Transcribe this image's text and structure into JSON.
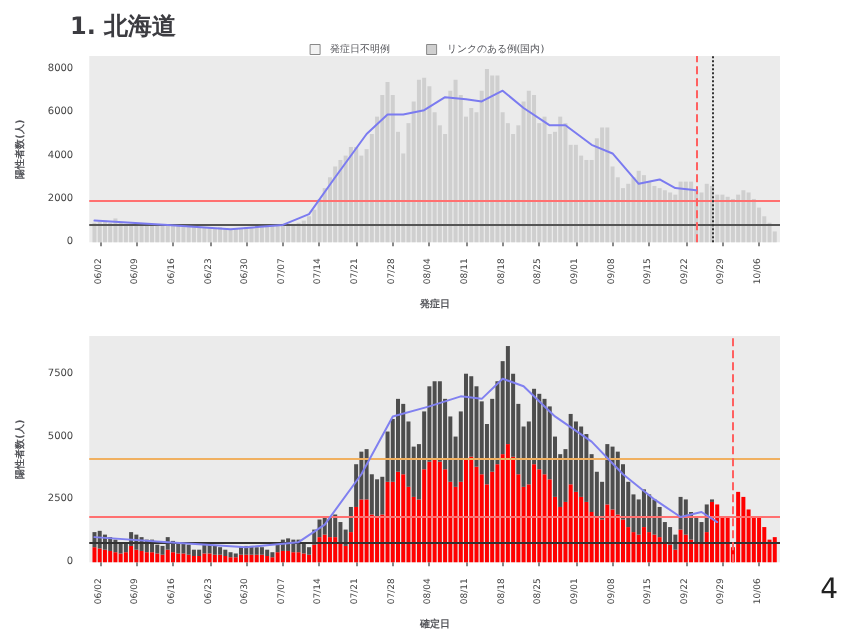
{
  "chart_data": [
    {
      "type": "bar",
      "title": "1. 北海道",
      "xlabel": "発症日",
      "ylabel": "陽性者数(人)",
      "legend": "top",
      "grid": false,
      "marker": "none",
      "line_style": "solid",
      "x": [
        "--06-01",
        "--06-02",
        "--06-03",
        "--06-04",
        "--06-05",
        "--06-06",
        "--06-07",
        "--06-08",
        "--06-09",
        "--06-10",
        "--06-11",
        "--06-12",
        "--06-13",
        "--06-14",
        "--06-15",
        "--06-16",
        "--06-17",
        "--06-18",
        "--06-19",
        "--06-20",
        "--06-21",
        "--06-22",
        "--06-23",
        "--06-24",
        "--06-25",
        "--06-26",
        "--06-27",
        "--06-28",
        "--06-29",
        "--06-30",
        "--07-01",
        "--07-02",
        "--07-03",
        "--07-04",
        "--07-05",
        "--07-06",
        "--07-07",
        "--07-08",
        "--07-09",
        "--07-10",
        "--07-11",
        "--07-12",
        "--07-13",
        "--07-14",
        "--07-15",
        "--07-16",
        "--07-17",
        "--07-18",
        "--07-19",
        "--07-20",
        "--07-21",
        "--07-22",
        "--07-23",
        "--07-24",
        "--07-25",
        "--07-26",
        "--07-27",
        "--07-28",
        "--07-29",
        "--07-30",
        "--07-31",
        "--08-01",
        "--08-02",
        "--08-03",
        "--08-04",
        "--08-05",
        "--08-06",
        "--08-07",
        "--08-08",
        "--08-09",
        "--08-10",
        "--08-11",
        "--08-12",
        "--08-13",
        "--08-14",
        "--08-15",
        "--08-16",
        "--08-17",
        "--08-18",
        "--08-19",
        "--08-20",
        "--08-21",
        "--08-22",
        "--08-23",
        "--08-24",
        "--08-25",
        "--08-26",
        "--08-27",
        "--08-28",
        "--08-29",
        "--08-30",
        "--08-31",
        "--09-01",
        "--09-02",
        "--09-03",
        "--09-04",
        "--09-05",
        "--09-06",
        "--09-07",
        "--09-08",
        "--09-09",
        "--09-10",
        "--09-11",
        "--09-12",
        "--09-13",
        "--09-14",
        "--09-15",
        "--09-16",
        "--09-17",
        "--09-18",
        "--09-19",
        "--09-20",
        "--09-21",
        "--09-22",
        "--09-23",
        "--09-24",
        "--09-25",
        "--09-26",
        "--09-27",
        "--09-28",
        "--09-29",
        "--09-30",
        "--10-01",
        "--10-02",
        "--10-03",
        "--10-04",
        "--10-05",
        "--10-06",
        "--10-07",
        "--10-08",
        "--10-09"
      ],
      "series": [
        {
          "name": "発症日不明例",
          "color": "#f2f2f2",
          "values": [
            null,
            null,
            null,
            null,
            null,
            null,
            null,
            null,
            null,
            null,
            null,
            null,
            null,
            null,
            null,
            null,
            null,
            null,
            null,
            null,
            null,
            null,
            null,
            null,
            null,
            null,
            null,
            null,
            null,
            null,
            null,
            null,
            null,
            null,
            null,
            null,
            null,
            null,
            null,
            null,
            null,
            null,
            null,
            null,
            null,
            null,
            null,
            null,
            null,
            null,
            null,
            null,
            null,
            null,
            null,
            null,
            null,
            null,
            null,
            null,
            null,
            null,
            null,
            null,
            null,
            null,
            null,
            null,
            null,
            null,
            null,
            null,
            null,
            null,
            null,
            null,
            null,
            null,
            null,
            null,
            null,
            null,
            null,
            null,
            null,
            null,
            null,
            null,
            null,
            null,
            null,
            null,
            null,
            null,
            null,
            null,
            null,
            null,
            null,
            null,
            null,
            null,
            null,
            null,
            null,
            null,
            null,
            null,
            null,
            null,
            null,
            null,
            null,
            null,
            null,
            null,
            null,
            null,
            null,
            null,
            null,
            null,
            null,
            null,
            null,
            null,
            null,
            null,
            null,
            null,
            null
          ]
        },
        {
          "name": "リンクのある例(国内)",
          "color": "#cfcfcf",
          "values": [
            900,
            950,
            1000,
            900,
            1100,
            900,
            850,
            850,
            900,
            850,
            800,
            800,
            750,
            800,
            800,
            750,
            750,
            700,
            700,
            750,
            700,
            700,
            650,
            650,
            700,
            650,
            600,
            650,
            650,
            700,
            700,
            750,
            700,
            750,
            800,
            800,
            850,
            800,
            850,
            900,
            1000,
            1200,
            1500,
            2000,
            2500,
            3000,
            3500,
            3800,
            4000,
            4400,
            4400,
            4000,
            4300,
            5000,
            5800,
            6800,
            7400,
            6800,
            5100,
            4100,
            5500,
            6500,
            7500,
            7600,
            7200,
            6000,
            5400,
            5000,
            7000,
            7500,
            6800,
            5800,
            6200,
            6000,
            7000,
            8000,
            7700,
            7700,
            6000,
            5500,
            5000,
            5400,
            6500,
            7000,
            6800,
            5500,
            5800,
            5000,
            5100,
            5800,
            5500,
            4500,
            4500,
            4000,
            3800,
            3800,
            4800,
            5300,
            5300,
            3500,
            3000,
            2500,
            2700,
            3000,
            3300,
            3100,
            2800,
            2600,
            2500,
            2400,
            2300,
            2200,
            2800,
            2800,
            2800,
            2400,
            2300,
            2700,
            2600,
            2200,
            2200,
            2100,
            2000,
            2200,
            2400,
            2300,
            2000,
            1600,
            1200,
            900,
            500
          ]
        },
        {
          "type": "line",
          "color": "#7b7bf0",
          "x": [
            "--06-01",
            "--06-15",
            "--06-27",
            "--07-07",
            "--07-12",
            "--07-17",
            "--07-23",
            "--07-27",
            "--07-30",
            "--08-03",
            "--08-07",
            "--08-11",
            "--08-14",
            "--08-18",
            "--08-22",
            "--08-27",
            "--08-30",
            "--09-04",
            "--09-08",
            "--09-13",
            "--09-17",
            "--09-20",
            "--09-24"
          ],
          "values": [
            1000,
            800,
            600,
            800,
            1300,
            3000,
            5000,
            5900,
            5900,
            6100,
            6700,
            6600,
            6500,
            7000,
            6200,
            5400,
            5400,
            4500,
            4100,
            2700,
            2900,
            2500,
            2400
          ]
        }
      ],
      "ylim": [
        0,
        8600
      ],
      "yticks": [
        0,
        2000,
        4000,
        6000,
        8000
      ],
      "xlim": [
        "--05-31",
        "--10-10"
      ],
      "xticks": [
        {
          "value": "--06-02",
          "label": "06/02"
        },
        {
          "value": "--06-09",
          "label": "06/09"
        },
        {
          "value": "--06-16",
          "label": "06/16"
        },
        {
          "value": "--06-23",
          "label": "06/23"
        },
        {
          "value": "--06-30",
          "label": "06/30"
        },
        {
          "value": "--07-07",
          "label": "07/07"
        },
        {
          "value": "--07-14",
          "label": "07/14"
        },
        {
          "value": "--07-21",
          "label": "07/21"
        },
        {
          "value": "--07-28",
          "label": "07/28"
        },
        {
          "value": "--08-04",
          "label": "08/04"
        },
        {
          "value": "--08-11",
          "label": "08/11"
        },
        {
          "value": "--08-18",
          "label": "08/18"
        },
        {
          "value": "--08-25",
          "label": "08/25"
        },
        {
          "value": "--09-01",
          "label": "09/01"
        },
        {
          "value": "--09-08",
          "label": "09/08"
        },
        {
          "value": "--09-15",
          "label": "09/15"
        },
        {
          "value": "--09-22",
          "label": "09/22"
        },
        {
          "value": "--09-29",
          "label": "09/29"
        },
        {
          "value": "--10-06",
          "label": "10/06"
        }
      ],
      "ref_lines": [
        {
          "axis": "y",
          "value": 1900,
          "color": "#ff7070",
          "line_style": "solid"
        },
        {
          "axis": "y",
          "value": 800,
          "color": "#555555",
          "line_style": "solid"
        },
        {
          "axis": "x",
          "value": "--09-24",
          "color": "#ff6060",
          "line_style": "dashed"
        },
        {
          "axis": "x",
          "value": "--09-27",
          "color": "#333333",
          "line_style": "dotted"
        }
      ]
    },
    {
      "type": "bar",
      "stacked": true,
      "xlabel": "確定日",
      "ylabel": "陽性者数(人)",
      "grid": false,
      "marker": "none",
      "line_style": "solid",
      "annotations": [
        "4"
      ],
      "x": [
        "--06-01",
        "--06-02",
        "--06-03",
        "--06-04",
        "--06-05",
        "--06-06",
        "--06-07",
        "--06-08",
        "--06-09",
        "--06-10",
        "--06-11",
        "--06-12",
        "--06-13",
        "--06-14",
        "--06-15",
        "--06-16",
        "--06-17",
        "--06-18",
        "--06-19",
        "--06-20",
        "--06-21",
        "--06-22",
        "--06-23",
        "--06-24",
        "--06-25",
        "--06-26",
        "--06-27",
        "--06-28",
        "--06-29",
        "--06-30",
        "--07-01",
        "--07-02",
        "--07-03",
        "--07-04",
        "--07-05",
        "--07-06",
        "--07-07",
        "--07-08",
        "--07-09",
        "--07-10",
        "--07-11",
        "--07-12",
        "--07-13",
        "--07-14",
        "--07-15",
        "--07-16",
        "--07-17",
        "--07-18",
        "--07-19",
        "--07-20",
        "--07-21",
        "--07-22",
        "--07-23",
        "--07-24",
        "--07-25",
        "--07-26",
        "--07-27",
        "--07-28",
        "--07-29",
        "--07-30",
        "--07-31",
        "--08-01",
        "--08-02",
        "--08-03",
        "--08-04",
        "--08-05",
        "--08-06",
        "--08-07",
        "--08-08",
        "--08-09",
        "--08-10",
        "--08-11",
        "--08-12",
        "--08-13",
        "--08-14",
        "--08-15",
        "--08-16",
        "--08-17",
        "--08-18",
        "--08-19",
        "--08-20",
        "--08-21",
        "--08-22",
        "--08-23",
        "--08-24",
        "--08-25",
        "--08-26",
        "--08-27",
        "--08-28",
        "--08-29",
        "--08-30",
        "--08-31",
        "--09-01",
        "--09-02",
        "--09-03",
        "--09-04",
        "--09-05",
        "--09-06",
        "--09-07",
        "--09-08",
        "--09-09",
        "--09-10",
        "--09-11",
        "--09-12",
        "--09-13",
        "--09-14",
        "--09-15",
        "--09-16",
        "--09-17",
        "--09-18",
        "--09-19",
        "--09-20",
        "--09-21",
        "--09-22",
        "--09-23",
        "--09-24",
        "--09-25",
        "--09-26",
        "--09-27",
        "--09-28",
        "--09-29",
        "--09-30",
        "--10-01",
        "--10-02",
        "--10-03",
        "--10-04",
        "--10-05",
        "--10-06",
        "--10-07",
        "--10-08",
        "--10-09"
      ],
      "series": [
        {
          "color": "#ff0000",
          "values": [
            600,
            550,
            500,
            450,
            400,
            350,
            400,
            650,
            500,
            450,
            400,
            400,
            350,
            300,
            500,
            400,
            350,
            350,
            300,
            250,
            250,
            350,
            350,
            300,
            300,
            250,
            200,
            200,
            300,
            300,
            300,
            300,
            300,
            250,
            200,
            400,
            450,
            450,
            400,
            400,
            350,
            300,
            700,
            1000,
            1100,
            1000,
            1000,
            800,
            650,
            1200,
            2200,
            2500,
            2500,
            1900,
            1800,
            1900,
            3200,
            3200,
            3600,
            3500,
            3000,
            2600,
            2500,
            3700,
            4000,
            4100,
            4000,
            3700,
            3200,
            3000,
            3200,
            4100,
            4200,
            3800,
            3500,
            3100,
            3600,
            3900,
            4300,
            4700,
            4200,
            3500,
            3000,
            3100,
            3900,
            3700,
            3500,
            3300,
            2600,
            2200,
            2400,
            3100,
            2800,
            2600,
            2400,
            2000,
            1800,
            1700,
            2300,
            2100,
            1900,
            1700,
            1400,
            1200,
            1100,
            1400,
            1200,
            1100,
            1000,
            800,
            700,
            500,
            1300,
            1100,
            900,
            800,
            800,
            1200,
            2400,
            2300,
            1800,
            1800,
            600,
            2800,
            2600,
            2100,
            1800,
            1800,
            1400,
            900,
            1000
          ]
        },
        {
          "color": "#4d4d4d",
          "values": [
            600,
            700,
            600,
            550,
            500,
            400,
            400,
            550,
            600,
            550,
            500,
            500,
            350,
            350,
            500,
            450,
            450,
            400,
            400,
            250,
            250,
            350,
            350,
            350,
            300,
            250,
            200,
            150,
            300,
            350,
            350,
            300,
            300,
            250,
            200,
            400,
            450,
            500,
            500,
            500,
            400,
            300,
            600,
            700,
            700,
            800,
            900,
            800,
            650,
            1000,
            1700,
            1900,
            2000,
            1600,
            1500,
            1500,
            2000,
            2500,
            2900,
            2800,
            2600,
            2000,
            2200,
            2300,
            3000,
            3100,
            3200,
            2800,
            2600,
            2000,
            2800,
            3400,
            3200,
            3200,
            2900,
            2400,
            2900,
            3300,
            3700,
            3900,
            3300,
            2800,
            2400,
            2500,
            3000,
            3000,
            3000,
            2900,
            2400,
            2100,
            2100,
            2800,
            2800,
            2800,
            2700,
            2300,
            1800,
            1500,
            2400,
            2500,
            2500,
            2200,
            1800,
            1500,
            1400,
            1500,
            1500,
            1400,
            1200,
            800,
            700,
            600,
            1300,
            1400,
            1100,
            1000,
            800,
            1100,
            100,
            0,
            0,
            0,
            0,
            0,
            0,
            0,
            0,
            0,
            0,
            0,
            0
          ]
        },
        {
          "type": "line",
          "color": "#8080f0",
          "x": [
            "--06-01",
            "--06-15",
            "--06-30",
            "--07-10",
            "--07-15",
            "--07-22",
            "--07-28",
            "--08-04",
            "--08-10",
            "--08-14",
            "--08-18",
            "--08-22",
            "--08-28",
            "--09-04",
            "--09-10",
            "--09-16",
            "--09-21",
            "--09-25",
            "--09-28"
          ],
          "values": [
            1000,
            800,
            600,
            800,
            1500,
            3500,
            5800,
            6200,
            6600,
            6500,
            7300,
            7000,
            5800,
            4800,
            3500,
            2500,
            1800,
            2000,
            1600
          ]
        }
      ],
      "ylim": [
        0,
        9000
      ],
      "yticks": [
        0,
        2500,
        5000,
        7500
      ],
      "xlim": [
        "--05-31",
        "--10-10"
      ],
      "xticks": [
        {
          "value": "--06-02",
          "label": "06/02"
        },
        {
          "value": "--06-09",
          "label": "06/09"
        },
        {
          "value": "--06-16",
          "label": "06/16"
        },
        {
          "value": "--06-23",
          "label": "06/23"
        },
        {
          "value": "--06-30",
          "label": "06/30"
        },
        {
          "value": "--07-07",
          "label": "07/07"
        },
        {
          "value": "--07-14",
          "label": "07/14"
        },
        {
          "value": "--07-21",
          "label": "07/21"
        },
        {
          "value": "--07-28",
          "label": "07/28"
        },
        {
          "value": "--08-04",
          "label": "08/04"
        },
        {
          "value": "--08-11",
          "label": "08/11"
        },
        {
          "value": "--08-18",
          "label": "08/18"
        },
        {
          "value": "--08-25",
          "label": "08/25"
        },
        {
          "value": "--09-01",
          "label": "09/01"
        },
        {
          "value": "--09-08",
          "label": "09/08"
        },
        {
          "value": "--09-15",
          "label": "09/15"
        },
        {
          "value": "--09-22",
          "label": "09/22"
        },
        {
          "value": "--09-29",
          "label": "09/29"
        },
        {
          "value": "--10-06",
          "label": "10/06"
        }
      ],
      "ref_lines": [
        {
          "axis": "y",
          "value": 4100,
          "color": "#f0b060",
          "line_style": "solid"
        },
        {
          "axis": "y",
          "value": 1850,
          "color": "#ff7070",
          "line_style": "solid"
        },
        {
          "axis": "y",
          "value": 800,
          "color": "#333333",
          "line_style": "solid"
        },
        {
          "axis": "x",
          "value": "--10-01",
          "color": "#ff6060",
          "line_style": "dashed"
        }
      ]
    }
  ]
}
